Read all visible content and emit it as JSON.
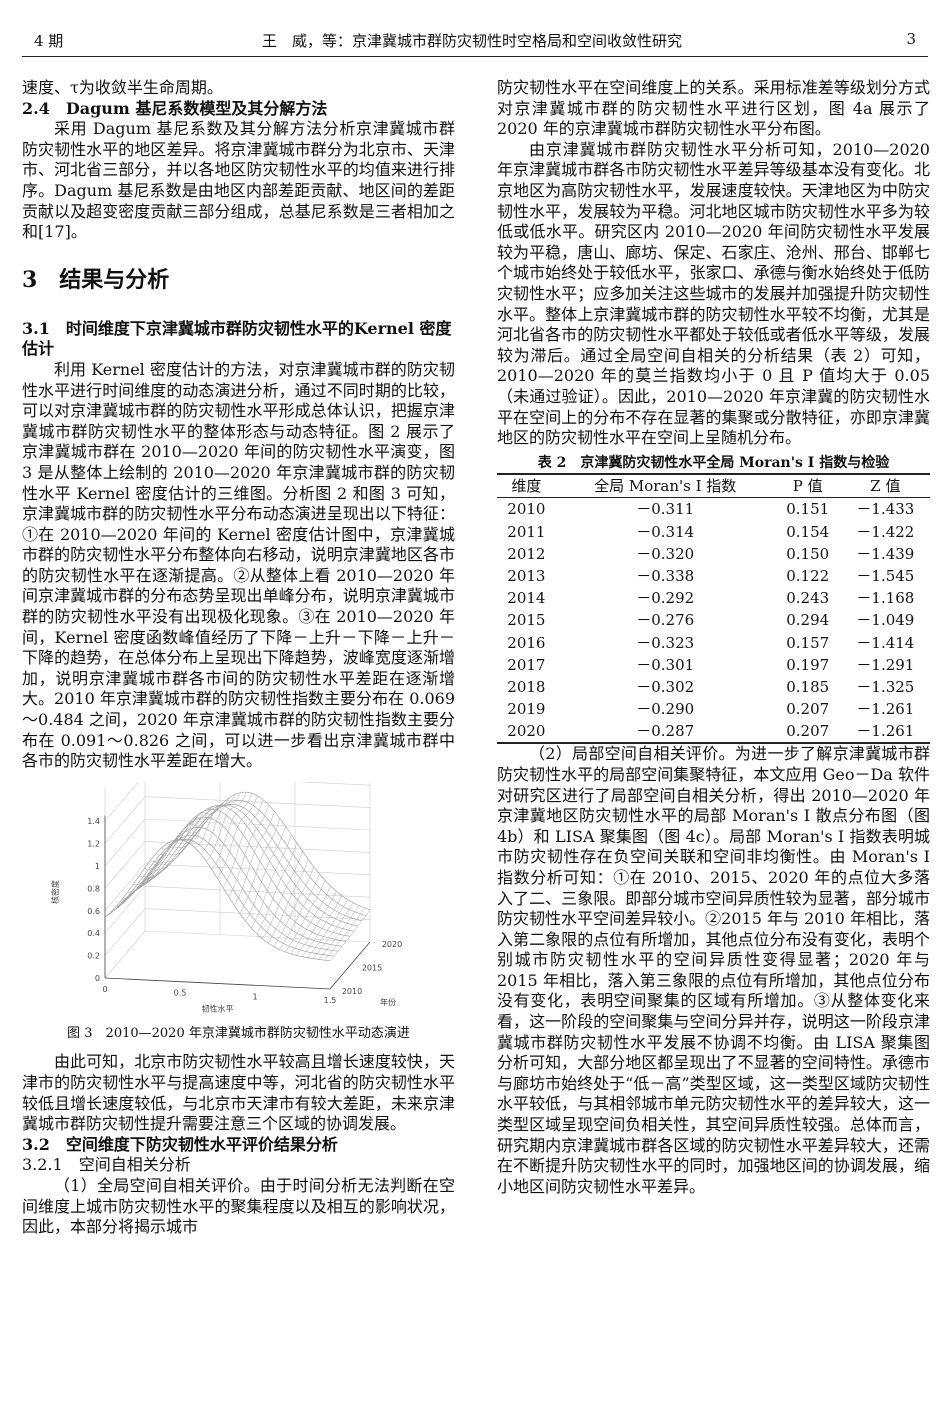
{
  "header": {
    "issue": "4 期",
    "running_title": "王　威，等：京津冀城市群防灾韧性时空格局和空间收敛性研究",
    "page_number": "3"
  },
  "left": {
    "intro_line": "速度、τ为收敛半生命周期。",
    "s24_heading": "2.4　Dagum 基尼系数模型及其分解方法",
    "s24_para": "采用 Dagum 基尼系数及其分解方法分析京津冀城市群防灾韧性水平的地区差异。将京津冀城市群分为北京市、天津市、河北省三部分，并以各地区防灾韧性水平的均值来进行排序。Dagum 基尼系数是由地区内部差距贡献、地区间的差距贡献以及超变密度贡献三部分组成，总基尼系数是三者相加之和[17]。",
    "s3_heading": "3　结果与分析",
    "s31_heading": "3.1　时间维度下京津冀城市群防灾韧性水平的Kernel 密度估计",
    "s31_para": "利用 Kernel 密度估计的方法，对京津冀城市群的防灾韧性水平进行时间维度的动态演进分析，通过不同时期的比较，可以对京津冀城市群的防灾韧性水平形成总体认识，把握京津冀城市群防灾韧性水平的整体形态与动态特征。图 2 展示了京津冀城市群在 2010—2020 年间的防灾韧性水平演变，图 3 是从整体上绘制的 2010—2020 年京津冀城市群的防灾韧性水平 Kernel 密度估计的三维图。分析图 2 和图 3 可知，京津冀城市群的防灾韧性水平分布动态演进呈现出以下特征：①在 2010—2020 年间的 Kernel 密度估计图中，京津冀城市群的防灾韧性水平分布整体向右移动，说明京津冀地区各市的防灾韧性水平在逐渐提高。②从整体上看 2010—2020 年间京津冀城市群的分布态势呈现出单峰分布，说明京津冀城市群的防灾韧性水平没有出现极化现象。③在 2010—2020 年间，Kernel 密度函数峰值经历了下降－上升－下降－上升－下降的趋势，在总体分布上呈现出下降趋势，波峰宽度逐渐增加，说明京津冀城市群各市间的防灾韧性水平差距在逐渐增大。2010 年京津冀城市群的防灾韧性指数主要分布在 0.069～0.484 之间，2020 年京津冀城市群的防灾韧性指数主要分布在 0.091～0.826 之间，可以进一步看出京津冀城市群中各市的防灾韧性水平差距在增大。",
    "figure": {
      "caption": "图 3　2010—2020 年京津冀城市群防灾韧性水平动态演进",
      "z_label": "核密度",
      "x_label": "韧性水平",
      "y_label": "年份",
      "z_ticks": [
        "0",
        "0.2",
        "0.4",
        "0.6",
        "0.8",
        "1",
        "1.2",
        "1.4"
      ],
      "x_ticks": [
        "0",
        "0.5",
        "1",
        "1.5"
      ],
      "y_ticks": [
        "2010",
        "2015",
        "2020"
      ]
    },
    "after_fig_para": "由此可知，北京市防灾韧性水平较高且增长速度较快，天津市的防灾韧性水平与提高速度中等，河北省的防灾韧性水平较低且增长速度较低，与北京市天津市有较大差距，未来京津冀城市群防灾韧性提升需要注意三个区域的协调发展。",
    "s32_heading": "3.2　空间维度下防灾韧性水平评价结果分析",
    "s321_heading": "3.2.1　空间自相关分析",
    "s321_para": "（1）全局空间自相关评价。由于时间分析无法判断在空间维度上城市防灾韧性水平的聚集程度以及相互的影响状况，因此，本部分将揭示城市"
  },
  "right": {
    "cont_para": "防灾韧性水平在空间维度上的关系。采用标准差等级划分方式对京津冀城市群的防灾韧性水平进行区划，图 4a 展示了 2020 年的京津冀城市群防灾韧性水平分布图。",
    "para2": "由京津冀城市群防灾韧性水平分析可知，2010—2020 年京津冀城市群各市防灾韧性水平差异等级基本没有变化。北京地区为高防灾韧性水平，发展速度较快。天津地区为中防灾韧性水平，发展较为平稳。河北地区城市防灾韧性水平多为较低或低水平。研究区内 2010—2020 年间防灾韧性水平发展较为平稳，唐山、廊坊、保定、石家庄、沧州、邢台、邯郸七个城市始终处于较低水平，张家口、承德与衡水始终处于低防灾韧性水平；应多加关注这些城市的发展并加强提升防灾韧性水平。整体上京津冀城市群的防灾韧性水平较不均衡，尤其是河北省各市的防灾韧性水平都处于较低或者低水平等级，发展较为滞后。通过全局空间自相关的分析结果（表 2）可知，2010—2020 年的莫兰指数均小于 0 且 P 值均大于 0.05（未通过验证）。因此，2010—2020 年京津冀的防灾韧性水平在空间上的分布不存在显著的集聚或分散特征，亦即京津冀地区的防灾韧性水平在空间上呈随机分布。",
    "table": {
      "caption": "表 2　京津冀防灾韧性水平全局 Moran's I 指数与检验",
      "headers": [
        "维度",
        "全局 Moran's I 指数",
        "P 值",
        "Z 值"
      ],
      "rows": [
        [
          "2010",
          "－0.311",
          "0.151",
          "－1.433"
        ],
        [
          "2011",
          "－0.314",
          "0.154",
          "－1.422"
        ],
        [
          "2012",
          "－0.320",
          "0.150",
          "－1.439"
        ],
        [
          "2013",
          "－0.338",
          "0.122",
          "－1.545"
        ],
        [
          "2014",
          "－0.292",
          "0.243",
          "－1.168"
        ],
        [
          "2015",
          "－0.276",
          "0.294",
          "－1.049"
        ],
        [
          "2016",
          "－0.323",
          "0.157",
          "－1.414"
        ],
        [
          "2017",
          "－0.301",
          "0.197",
          "－1.291"
        ],
        [
          "2018",
          "－0.302",
          "0.185",
          "－1.325"
        ],
        [
          "2019",
          "－0.290",
          "0.207",
          "－1.261"
        ],
        [
          "2020",
          "－0.287",
          "0.207",
          "－1.261"
        ]
      ]
    },
    "para3": "（2）局部空间自相关评价。为进一步了解京津冀城市群防灾韧性水平的局部空间集聚特征，本文应用 Geo－Da 软件对研究区进行了局部空间自相关分析，得出 2010—2020 年京津冀地区防灾韧性水平的局部 Moran's I 散点分布图（图 4b）和 LISA 聚集图（图 4c）。局部 Moran's I 指数表明城市防灾韧性存在负空间关联和空间非均衡性。由 Moran's I 指数分析可知：①在 2010、2015、2020 年的点位大多落入了二、三象限。即部分城市空间异质性较为显著，部分城市防灾韧性水平空间差异较小。②2015 年与 2010 年相比，落入第二象限的点位有所增加，其他点位分布没有变化，表明个别城市防灾韧性水平的空间异质性变得显著；2020 年与 2015 年相比，落入第三象限的点位有所增加，其他点位分布没有变化，表明空间聚集的区域有所增加。③从整体变化来看，这一阶段的空间聚集与空间分异并存，说明这一阶段京津冀城市群防灾韧性水平发展不协调不均衡。由 LISA 聚集图分析可知，大部分地区都呈现出了不显著的空间特性。承德市与廊坊市始终处于“低－高”类型区域，这一类型区域防灾韧性水平较低，与其相邻城市单元防灾韧性水平的差异较大，这一类型区域呈现空间负相关性，其空间异质性较强。总体而言，研究期内京津冀城市群各区域的防灾韧性水平差异较大，还需在不断提升防灾韧性水平的同时，加强地区间的协调发展，缩小地区间防灾韧性水平差异。"
  }
}
